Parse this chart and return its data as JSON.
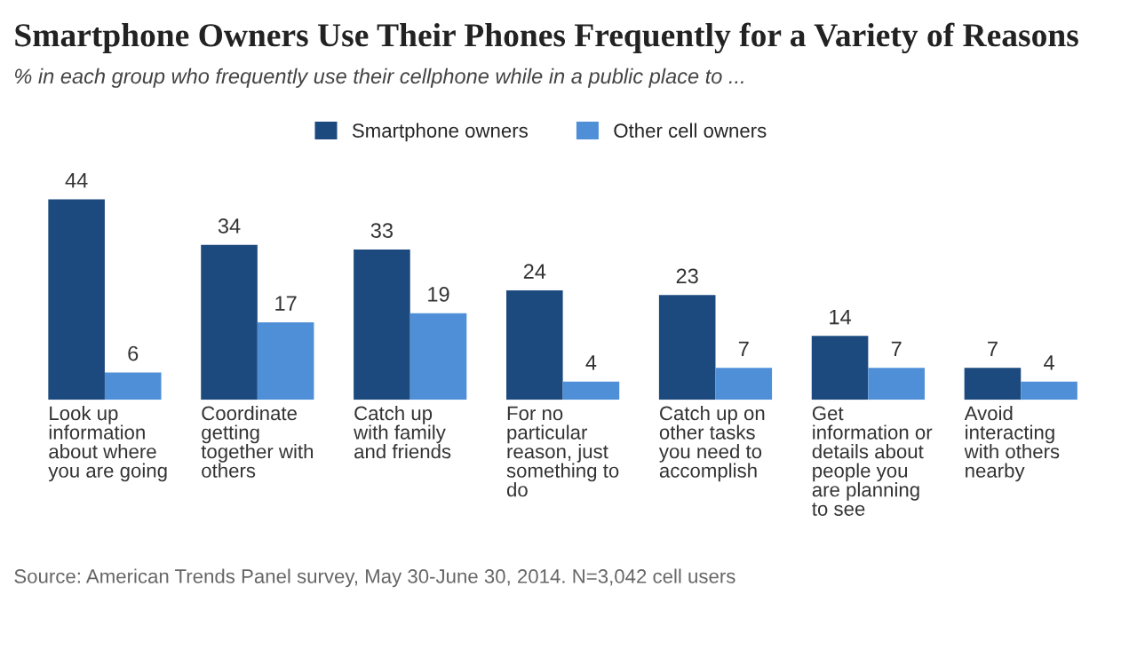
{
  "chart_data": {
    "type": "bar",
    "title": "Smartphone Owners Use Their Phones Frequently for a Variety of Reasons",
    "subtitle": "% in each group who frequently use their cellphone while in a public place to ...",
    "categories": [
      "Look up\ninformation\nabout where\nyou are going",
      "Coordinate\ngetting\ntogether with\nothers",
      "Catch up\nwith family\nand friends",
      "For no\nparticular\nreason, just\nsomething to\ndo",
      "Catch up on\nother tasks\nyou need to\naccomplish",
      "Get\ninformation or\ndetails about\npeople you\nare planning\nto see",
      "Avoid\ninteracting\nwith others\nnearby"
    ],
    "series": [
      {
        "name": "Smartphone owners",
        "color": "#1c4a7e",
        "values": [
          44,
          34,
          33,
          24,
          23,
          14,
          7
        ]
      },
      {
        "name": "Other cell owners",
        "color": "#4f8fd8",
        "values": [
          6,
          17,
          19,
          4,
          7,
          7,
          4
        ]
      }
    ],
    "data_labels": true,
    "legend": "top",
    "annotations": [
      "Source: American Trends Panel survey, May 30-June 30, 2014. N=3,042 cell users"
    ]
  }
}
